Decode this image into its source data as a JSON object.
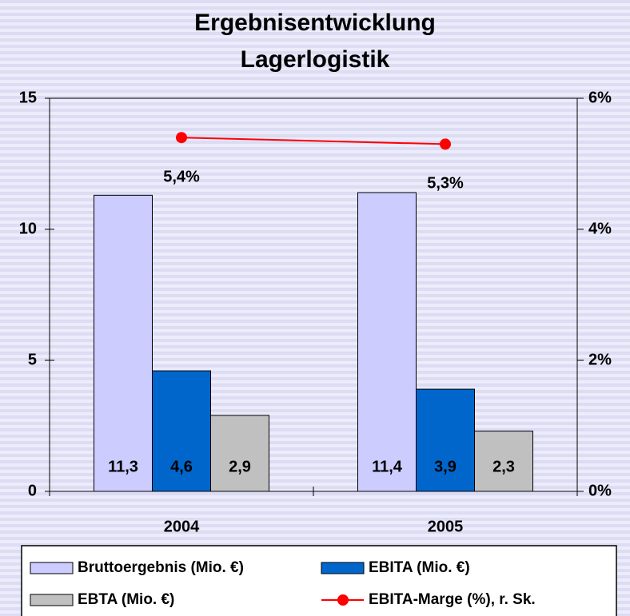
{
  "chart_data": {
    "type": "bar",
    "title": [
      "Ergebnisentwicklung",
      "Lagerlogistik"
    ],
    "categories": [
      "2004",
      "2005"
    ],
    "series": [
      {
        "name": "Bruttoergebnis (Mio. €)",
        "color": "#ccccff",
        "values": [
          11.3,
          11.4
        ],
        "value_labels": [
          "11,3",
          "11,4"
        ]
      },
      {
        "name": "EBITA (Mio. €)",
        "color": "#0066cc",
        "values": [
          4.6,
          3.9
        ],
        "value_labels": [
          "4,6",
          "3,9"
        ]
      },
      {
        "name": "EBTA (Mio. €)",
        "color": "#c0c0c0",
        "values": [
          2.9,
          2.3
        ],
        "value_labels": [
          "2,9",
          "2,3"
        ]
      },
      {
        "name": "EBITA-Marge (%), r. Sk.",
        "color": "#ff0000",
        "type": "line",
        "axis": "y2",
        "values": [
          5.4,
          5.3
        ],
        "value_labels": [
          "5,4%",
          "5,3%"
        ]
      }
    ],
    "ylim": [
      0,
      15
    ],
    "yticks": [
      0,
      5,
      10,
      15
    ],
    "y2lim": [
      0,
      6
    ],
    "y2ticks": [
      {
        "value": 0,
        "label": "0%"
      },
      {
        "value": 2,
        "label": "2%"
      },
      {
        "value": 4,
        "label": "4%"
      },
      {
        "value": 6,
        "label": "6%"
      }
    ],
    "grid": false,
    "legend": "bottom"
  }
}
